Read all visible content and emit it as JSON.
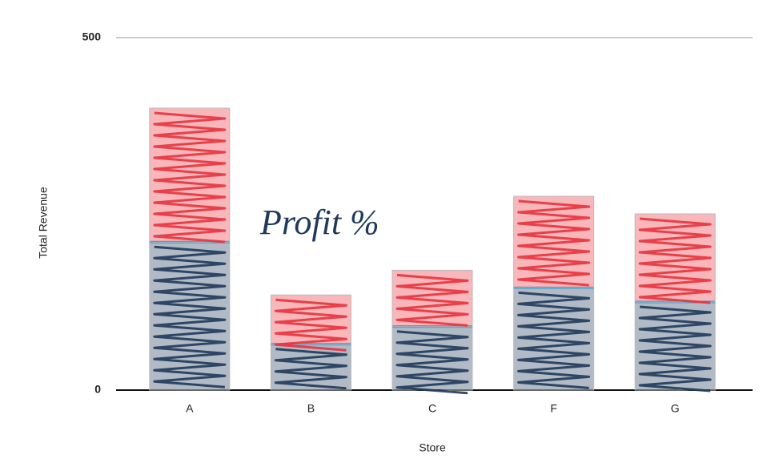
{
  "chart_data": {
    "type": "bar",
    "stacked": true,
    "x_label": "Store",
    "y_label": "Total Revenue",
    "annotation": "Profit %",
    "categories": [
      "A",
      "B",
      "C",
      "F",
      "G"
    ],
    "series": [
      {
        "color": "#1f3a5a",
        "values": [
          210,
          65,
          90,
          145,
          125
        ]
      },
      {
        "color": "#e8323c",
        "values": [
          190,
          70,
          80,
          130,
          125
        ]
      }
    ],
    "divider_color": "#3aa0d8",
    "ylim": [
      0,
      500
    ],
    "yticks": [
      0,
      500
    ],
    "grid": true
  }
}
